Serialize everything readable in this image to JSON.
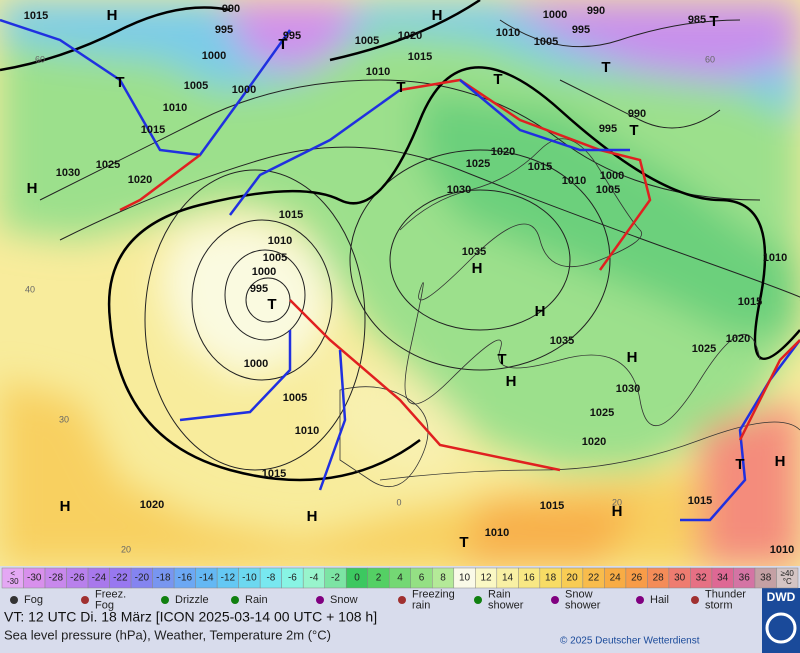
{
  "map": {
    "isobar_labels": [
      "1015",
      "990",
      "995",
      "995",
      "1000",
      "1005",
      "1000",
      "1010",
      "1015",
      "1025",
      "1030",
      "1020",
      "1005",
      "1010",
      "1015",
      "1020",
      "1000",
      "990",
      "995",
      "1005",
      "1010",
      "985",
      "995",
      "990",
      "1020",
      "1015",
      "1025",
      "1010",
      "1000",
      "1005",
      "1030",
      "1015",
      "1010",
      "1005",
      "1000",
      "995",
      "1035",
      "1000",
      "1005",
      "1010",
      "1015",
      "1020",
      "1035",
      "1030",
      "1025",
      "1020",
      "1025",
      "1020",
      "1015",
      "1010",
      "1015",
      "1015",
      "1010",
      "1010"
    ],
    "pressure_centers": [
      "H",
      "H",
      "T",
      "T",
      "T",
      "T",
      "T",
      "T",
      "T",
      "H",
      "H",
      "H",
      "T",
      "T",
      "H",
      "H",
      "T",
      "H",
      "H",
      "H",
      "T",
      "H"
    ],
    "grid_labels": [
      "60",
      "40",
      "30",
      "20",
      "0",
      "20",
      "60"
    ]
  },
  "color_scale": {
    "below": {
      "lines": [
        "<",
        "-30"
      ],
      "color": "#e4a8f4"
    },
    "steps": [
      {
        "value": -30,
        "color": "#d890ec"
      },
      {
        "value": -28,
        "color": "#c888ec"
      },
      {
        "value": -26,
        "color": "#b880ec"
      },
      {
        "value": -24,
        "color": "#a878ec"
      },
      {
        "value": -22,
        "color": "#9878f0"
      },
      {
        "value": -20,
        "color": "#8484f0"
      },
      {
        "value": -18,
        "color": "#7896f0"
      },
      {
        "value": -16,
        "color": "#6ca8f4"
      },
      {
        "value": -14,
        "color": "#64b8f4"
      },
      {
        "value": -12,
        "color": "#64c8f4"
      },
      {
        "value": -10,
        "color": "#6cd8f0"
      },
      {
        "value": -8,
        "color": "#78e8f0"
      },
      {
        "value": -6,
        "color": "#88f4e4"
      },
      {
        "value": -4,
        "color": "#98f4cc"
      },
      {
        "value": -2,
        "color": "#7ce4a4"
      },
      {
        "value": 0,
        "color": "#3cc860"
      },
      {
        "value": 2,
        "color": "#54d064"
      },
      {
        "value": 4,
        "color": "#74d874"
      },
      {
        "value": 6,
        "color": "#94e084"
      },
      {
        "value": 8,
        "color": "#b4ea98"
      },
      {
        "value": 10,
        "color": "#fafae8"
      },
      {
        "value": 12,
        "color": "#faf8c4"
      },
      {
        "value": 14,
        "color": "#f8f0a4"
      },
      {
        "value": 16,
        "color": "#f8e884"
      },
      {
        "value": 18,
        "color": "#f8dc64"
      },
      {
        "value": 20,
        "color": "#f8cc54"
      },
      {
        "value": 22,
        "color": "#f8bc4c"
      },
      {
        "value": 24,
        "color": "#f8ac44"
      },
      {
        "value": 26,
        "color": "#f89c48"
      },
      {
        "value": 28,
        "color": "#f48c58"
      },
      {
        "value": 30,
        "color": "#ee7c70"
      },
      {
        "value": 32,
        "color": "#e67084"
      },
      {
        "value": 34,
        "color": "#de6894"
      },
      {
        "value": 36,
        "color": "#d474a4"
      },
      {
        "value": 38,
        "color": "#c4a0a4"
      }
    ],
    "above": {
      "lines": [
        "≥40",
        "°C"
      ],
      "color": "#d4c4c4"
    }
  },
  "legend": {
    "items": [
      {
        "lines": [
          "Fog"
        ]
      },
      {
        "lines": [
          "Freez.",
          "Fog"
        ]
      },
      {
        "lines": [
          "Drizzle"
        ]
      },
      {
        "lines": [
          "Rain"
        ]
      },
      {
        "lines": [
          "Snow"
        ]
      },
      {
        "lines": [
          "Freezing",
          "rain"
        ]
      },
      {
        "lines": [
          "Rain",
          "shower"
        ]
      },
      {
        "lines": [
          "Snow",
          "shower"
        ]
      },
      {
        "lines": [
          "Hail"
        ]
      },
      {
        "lines": [
          "Thunder",
          "storm"
        ]
      }
    ]
  },
  "footer": {
    "valid_time": "VT: 12 UTC Di.  18 März [ICON 2025-03-14  00 UTC + 108 h]",
    "description": "Sea level pressure (hPa), Weather, Temperature 2m (°C)",
    "copyright": "© 2025 Deutscher Wetterdienst",
    "logo": "DWD"
  }
}
